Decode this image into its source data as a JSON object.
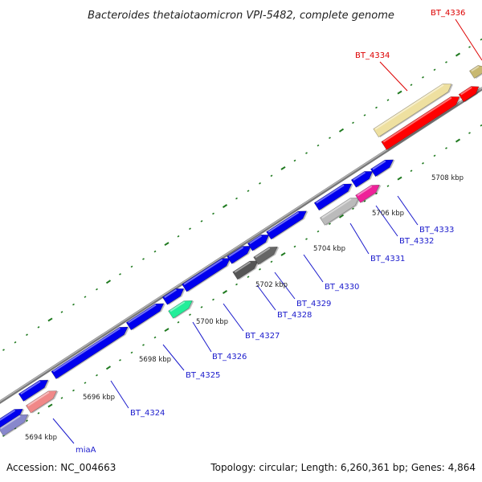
{
  "title": "Bacteroides thetaiotaomicron VPI-5482, complete genome",
  "footer": {
    "accession": "Accession: NC_004663",
    "summary": "Topology: circular; Length: 6,260,361 bp; Genes: 4,864"
  },
  "colors": {
    "axis": "#8a8a8a",
    "tick": "#1f7a1f",
    "label_default": "#1a1acc",
    "label_highlight": "#dd0000"
  },
  "scale_labels": [
    {
      "text": "5694 kbp",
      "kbp": 5694
    },
    {
      "text": "5696 kbp",
      "kbp": 5696
    },
    {
      "text": "5698 kbp",
      "kbp": 5698
    },
    {
      "text": "5700 kbp",
      "kbp": 5700
    },
    {
      "text": "5702 kbp",
      "kbp": 5702
    },
    {
      "text": "5704 kbp",
      "kbp": 5704
    },
    {
      "text": "5706 kbp",
      "kbp": 5706
    },
    {
      "text": "5708 kbp",
      "kbp": 5708
    }
  ],
  "genes": [
    {
      "name": "miaA",
      "label": "miaA",
      "color": "#8888cc",
      "highlight": false
    },
    {
      "name": "BT_4324",
      "label": "BT_4324",
      "color": "#f08888",
      "highlight": false
    },
    {
      "name": "BT_4325",
      "label": "BT_4325",
      "color": "#0000ee",
      "highlight": false
    },
    {
      "name": "BT_4326",
      "label": "BT_4326",
      "color": "#22ee99",
      "highlight": false
    },
    {
      "name": "BT_4327",
      "label": "BT_4327",
      "color": "#0000ee",
      "highlight": false
    },
    {
      "name": "BT_4328",
      "label": "BT_4328",
      "color": "#555555",
      "highlight": false
    },
    {
      "name": "BT_4329",
      "label": "BT_4329",
      "color": "#666666",
      "highlight": false
    },
    {
      "name": "BT_4330",
      "label": "BT_4330",
      "color": "#0000ee",
      "highlight": false
    },
    {
      "name": "BT_4331",
      "label": "BT_4331",
      "color": "#bbbbbb",
      "highlight": false
    },
    {
      "name": "BT_4332",
      "label": "BT_4332",
      "color": "#ee2299",
      "highlight": false
    },
    {
      "name": "BT_4333",
      "label": "BT_4333",
      "color": "#0000ee",
      "highlight": false
    },
    {
      "name": "BT_4334",
      "label": "BT_4334",
      "color": "#eee0a0",
      "highlight": true
    },
    {
      "name": "BT_4336",
      "label": "BT_4336",
      "color": "#c8b870",
      "highlight": true
    }
  ],
  "unlabeled_feature_colors": [
    "#0000ee",
    "#ff0000",
    "#888888"
  ]
}
